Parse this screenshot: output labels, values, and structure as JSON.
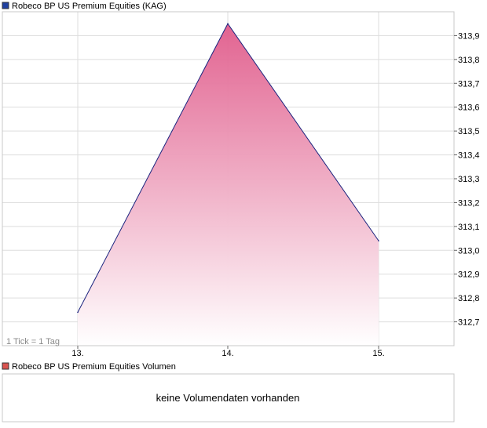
{
  "chart_data": [
    {
      "type": "area",
      "legend": "Robeco BP US Premium Equities (KAG)",
      "x": [
        "13.",
        "14.",
        "15."
      ],
      "series": [
        {
          "name": "Robeco BP US Premium Equities (KAG)",
          "values": [
            312.74,
            313.95,
            313.04
          ]
        }
      ],
      "yticks": [
        "312,7",
        "312,8",
        "312,9",
        "313,0",
        "313,1",
        "313,2",
        "313,3",
        "313,4",
        "313,5",
        "313,6",
        "313,7",
        "313,8",
        "313,9"
      ],
      "ytick_values": [
        312.7,
        312.8,
        312.9,
        313.0,
        313.1,
        313.2,
        313.3,
        313.4,
        313.5,
        313.6,
        313.7,
        313.8,
        313.9
      ],
      "ylim": [
        312.6,
        314.0
      ],
      "y_axis_side": "right",
      "grid": true,
      "tick_note": "1 Tick = 1 Tag",
      "colors": {
        "line": "#1a237e",
        "fill_top": "#e05a8a",
        "fill_bottom": "#ffffff",
        "legend_swatch": "#1f3f9f",
        "grid": "#dddddd",
        "frame": "#c8c8c8"
      }
    },
    {
      "type": "bar",
      "legend": "Robeco BP US Premium Equities Volumen",
      "message": "keine Volumendaten vorhanden",
      "series": [],
      "colors": {
        "legend_swatch": "#d9534f",
        "frame": "#c8c8c8"
      }
    }
  ]
}
